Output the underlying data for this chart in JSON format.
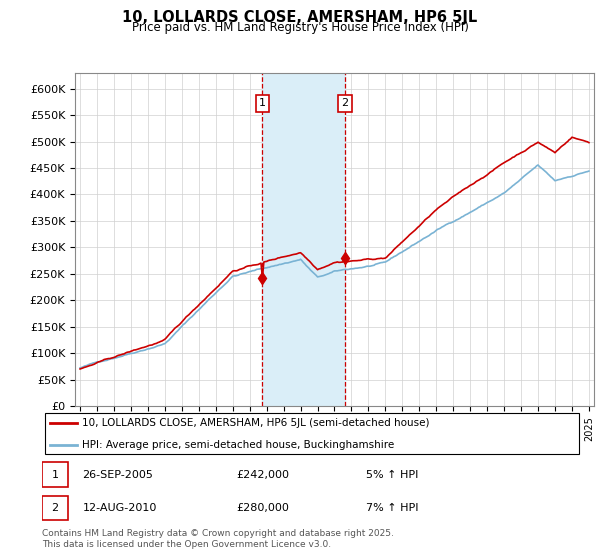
{
  "title": "10, LOLLARDS CLOSE, AMERSHAM, HP6 5JL",
  "subtitle": "Price paid vs. HM Land Registry's House Price Index (HPI)",
  "yticks": [
    0,
    50000,
    100000,
    150000,
    200000,
    250000,
    300000,
    350000,
    400000,
    450000,
    500000,
    550000,
    600000
  ],
  "ytick_labels": [
    "£0",
    "£50K",
    "£100K",
    "£150K",
    "£200K",
    "£250K",
    "£300K",
    "£350K",
    "£400K",
    "£450K",
    "£500K",
    "£550K",
    "£600K"
  ],
  "hpi_color": "#7ab3d4",
  "price_color": "#cc0000",
  "shaded_color": "#daeef8",
  "vline_color": "#cc0000",
  "marker1_year": 2005.75,
  "marker2_year": 2010.62,
  "marker1_price": 242000,
  "marker2_price": 280000,
  "legend_property": "10, LOLLARDS CLOSE, AMERSHAM, HP6 5JL (semi-detached house)",
  "legend_hpi": "HPI: Average price, semi-detached house, Buckinghamshire",
  "footer": "Contains HM Land Registry data © Crown copyright and database right 2025.\nThis data is licensed under the Open Government Licence v3.0.",
  "x_start_year": 1995,
  "x_end_year": 2025
}
